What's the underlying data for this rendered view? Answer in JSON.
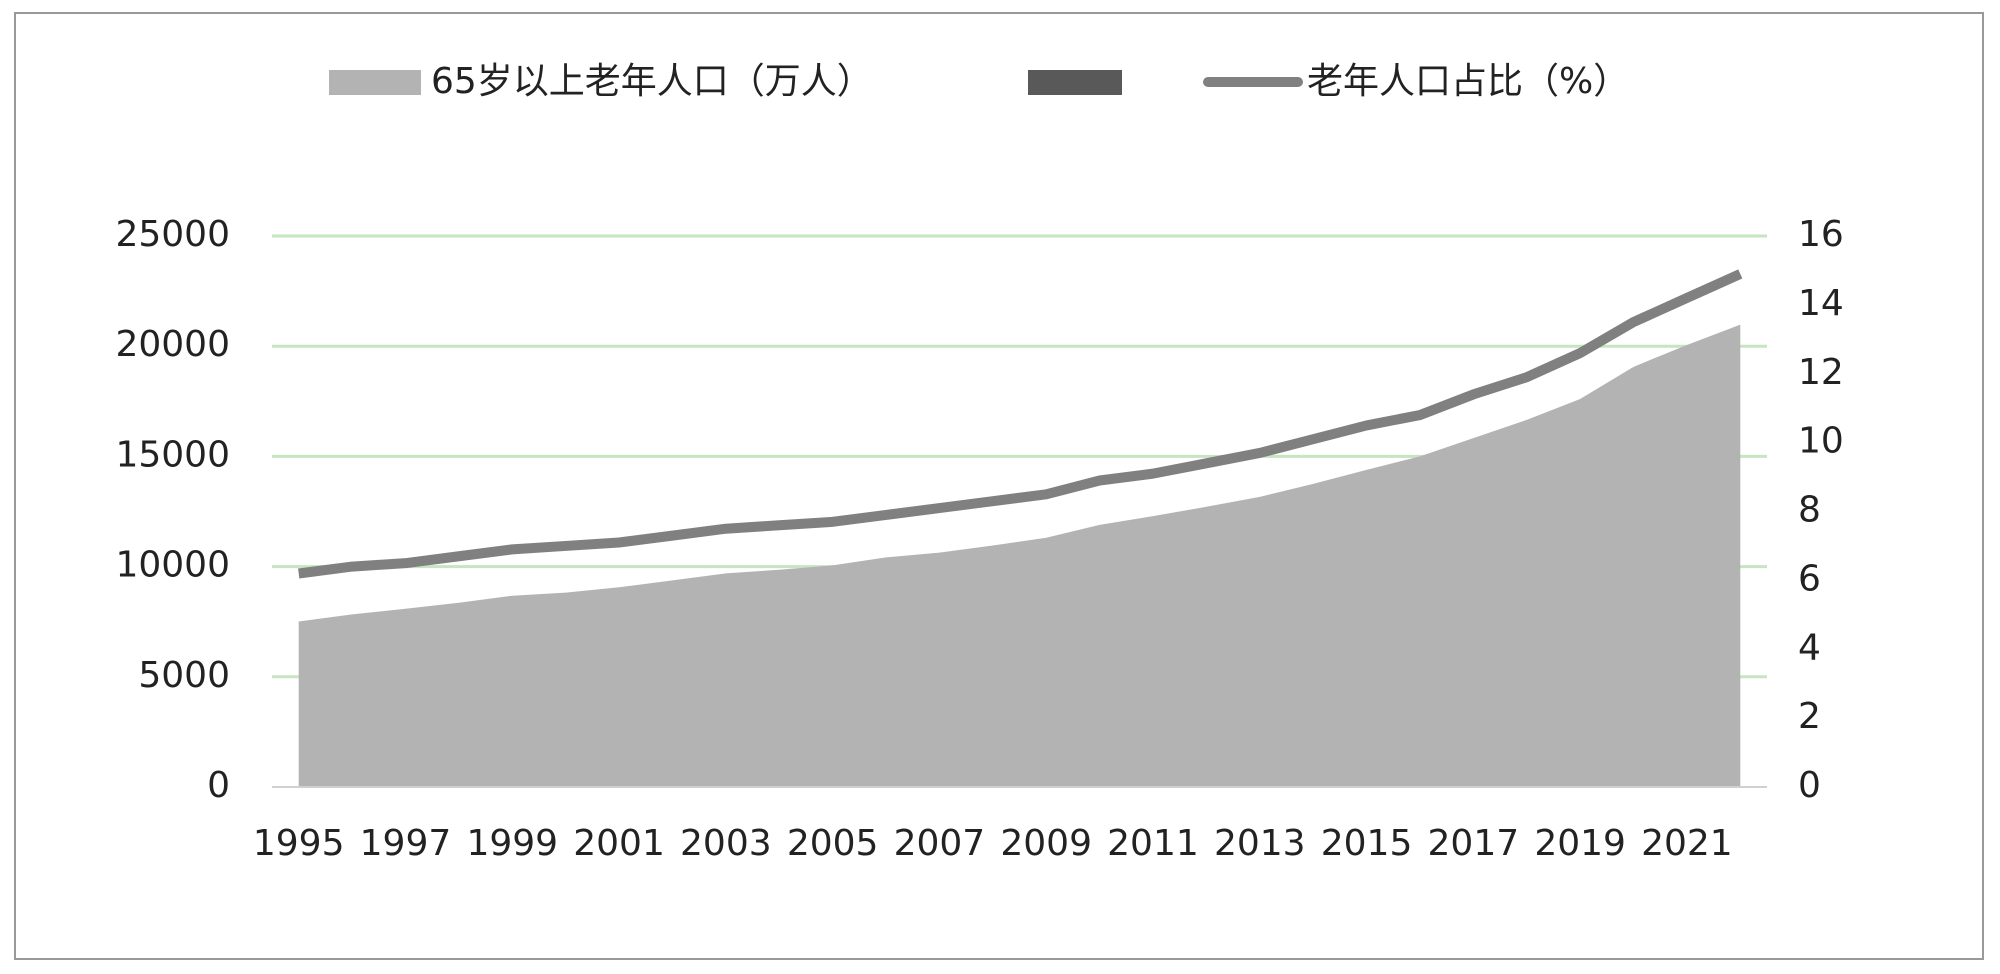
{
  "chart_data": {
    "type": "area-line",
    "categories": [
      "1995",
      null,
      "1997",
      null,
      "1999",
      null,
      "2001",
      null,
      "2003",
      null,
      "2005",
      null,
      "2007",
      null,
      "2009",
      null,
      "2011",
      null,
      "2013",
      null,
      "2015",
      null,
      "2017",
      null,
      "2019",
      null,
      "2021",
      null
    ],
    "series": [
      {
        "name": "65岁以上老年人口（万人）",
        "color": "#b3b3b3",
        "values": [
          7510,
          7833,
          8085,
          8359,
          8679,
          8821,
          9062,
          9377,
          9692,
          9857,
          10055,
          10419,
          10636,
          10956,
          11307,
          11894,
          12288,
          12714,
          13161,
          13755,
          14386,
          15003,
          15831,
          16658,
          17603,
          19064,
          20056,
          20978
        ]
      },
      {
        "name": "老年人口占比（%）",
        "color": "#808080",
        "axis": "y2",
        "values": [
          6.2,
          6.4,
          6.5,
          6.7,
          6.9,
          7.0,
          7.1,
          7.3,
          7.5,
          7.6,
          7.7,
          7.9,
          8.1,
          8.3,
          8.5,
          8.9,
          9.1,
          9.4,
          9.7,
          10.1,
          10.5,
          10.8,
          11.4,
          11.9,
          12.6,
          13.5,
          14.2,
          14.9
        ]
      }
    ],
    "ylim": [
      0,
      25000
    ],
    "yticks": [
      0,
      5000,
      10000,
      15000,
      20000,
      25000
    ],
    "y2lim": [
      0,
      16
    ],
    "y2ticks": [
      0,
      2,
      4,
      6,
      8,
      10,
      12,
      14,
      16
    ],
    "grid": true,
    "grid_color": "#c6e5c0",
    "legend": "top"
  }
}
